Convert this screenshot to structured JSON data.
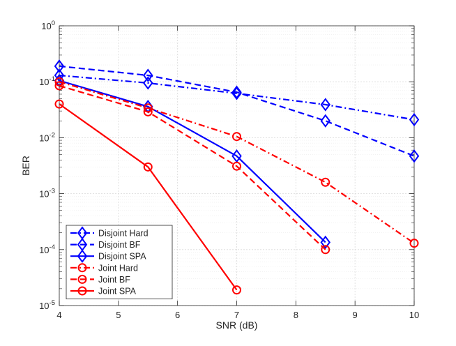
{
  "chart_data": {
    "type": "line",
    "title": "",
    "xlabel": "SNR (dB)",
    "ylabel": "BER",
    "x_scale": "linear",
    "y_scale": "log",
    "xlim": [
      4,
      10
    ],
    "ylim": [
      1e-05,
      1
    ],
    "x_ticks": [
      4,
      5,
      6,
      7,
      8,
      9,
      10
    ],
    "x_tick_labels": [
      "4",
      "5",
      "6",
      "7",
      "8",
      "9",
      "10"
    ],
    "y_ticks": [
      {
        "base": "10",
        "exp": "-5",
        "value": 1e-05
      },
      {
        "base": "10",
        "exp": "-4",
        "value": 0.0001
      },
      {
        "base": "10",
        "exp": "-3",
        "value": 0.001
      },
      {
        "base": "10",
        "exp": "-2",
        "value": 0.01
      },
      {
        "base": "10",
        "exp": "-1",
        "value": 0.1
      },
      {
        "base": "10",
        "exp": "0",
        "value": 1
      }
    ],
    "grid": true,
    "minor_grid": true,
    "legend_position": "bottom-left",
    "series": [
      {
        "name": "Disjoint Hard",
        "color": "#0000ff",
        "line_style": "dashdot",
        "marker": "diamond",
        "x": [
          4,
          5.5,
          7,
          8.5,
          10
        ],
        "y": [
          0.13,
          0.095,
          0.062,
          0.039,
          0.021
        ]
      },
      {
        "name": "Disjoint BF",
        "color": "#0000ff",
        "line_style": "dashed",
        "marker": "diamond",
        "x": [
          4,
          5.5,
          7,
          8.5,
          10
        ],
        "y": [
          0.19,
          0.13,
          0.065,
          0.02,
          0.0047
        ]
      },
      {
        "name": "Disjoint SPA",
        "color": "#0000ff",
        "line_style": "solid",
        "marker": "diamond",
        "x": [
          4,
          5.5,
          7,
          8.5
        ],
        "y": [
          0.105,
          0.036,
          0.0047,
          0.000135
        ]
      },
      {
        "name": "Joint Hard",
        "color": "#ff0000",
        "line_style": "dashdot",
        "marker": "circle",
        "x": [
          4,
          5.5,
          7,
          8.5,
          10
        ],
        "y": [
          0.1,
          0.034,
          0.0105,
          0.0016,
          0.00013
        ]
      },
      {
        "name": "Joint BF",
        "color": "#ff0000",
        "line_style": "dashed",
        "marker": "circle",
        "x": [
          4,
          5.5,
          7,
          8.5
        ],
        "y": [
          0.085,
          0.029,
          0.0031,
          0.0001
        ]
      },
      {
        "name": "Joint SPA",
        "color": "#ff0000",
        "line_style": "solid",
        "marker": "circle",
        "x": [
          4,
          5.5,
          7
        ],
        "y": [
          0.04,
          0.003,
          1.9e-05
        ]
      }
    ]
  }
}
